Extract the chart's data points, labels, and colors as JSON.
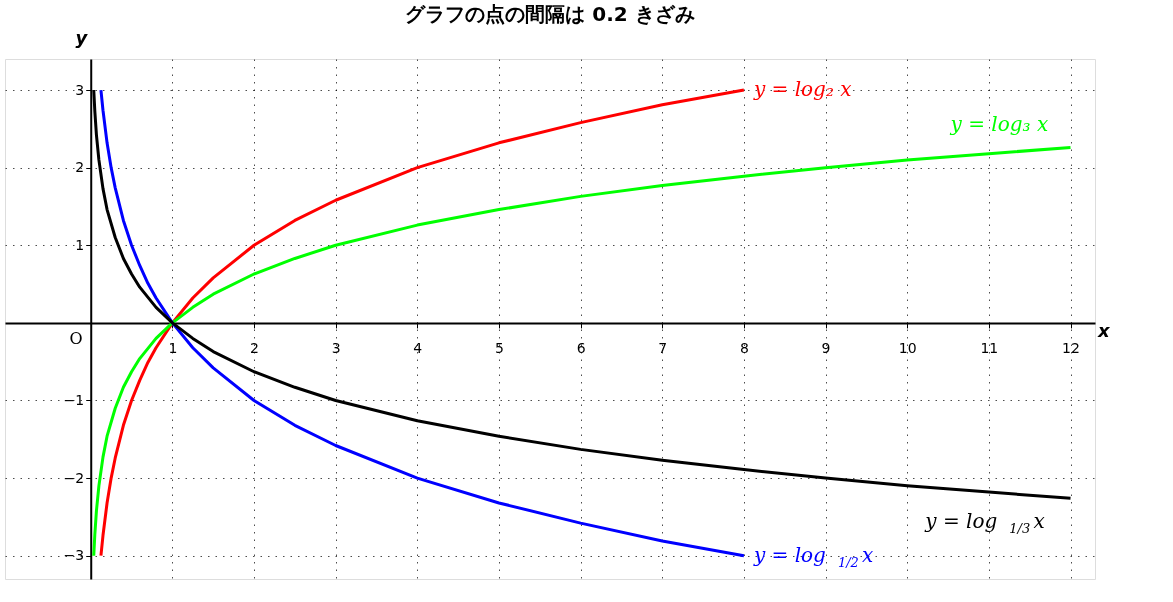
{
  "chart_data": {
    "type": "line",
    "title": "グラフの点の間隔は 0.2 きざみ",
    "xlabel": "x",
    "ylabel": "y",
    "xlim": [
      -1.05,
      12.3
    ],
    "ylim": [
      -3.3,
      3.4
    ],
    "xticks": [
      1,
      2,
      3,
      4,
      5,
      6,
      7,
      8,
      9,
      10,
      11,
      12
    ],
    "yticks": [
      -3,
      -2,
      -1,
      1,
      2,
      3
    ],
    "grid": true,
    "marker": "none",
    "line_style": "solid",
    "annotations": [
      "O"
    ],
    "series": [
      {
        "name": "y = log₂ x",
        "color": "#ff0000",
        "x": [
          0.125,
          0.15,
          0.2,
          0.25,
          0.3,
          0.4,
          0.5,
          0.6,
          0.7,
          0.8,
          1,
          1.25,
          1.5,
          2,
          2.5,
          3,
          4,
          5,
          6,
          7,
          8
        ],
        "values": [
          -3,
          -2.74,
          -2.32,
          -2,
          -1.74,
          -1.32,
          -1,
          -0.74,
          -0.51,
          -0.32,
          0,
          0.32,
          0.58,
          1,
          1.32,
          1.58,
          2,
          2.32,
          2.58,
          2.81,
          3
        ]
      },
      {
        "name": "y = log₃ x",
        "color": "#00ff00",
        "x": [
          0.037,
          0.05,
          0.07,
          0.1,
          0.15,
          0.2,
          0.3,
          0.4,
          0.5,
          0.6,
          0.8,
          1,
          1.25,
          1.5,
          2,
          2.5,
          3,
          4,
          5,
          6,
          7,
          8,
          9,
          10,
          11,
          12
        ],
        "values": [
          -3,
          -2.73,
          -2.42,
          -2.1,
          -1.73,
          -1.46,
          -1.1,
          -0.83,
          -0.63,
          -0.46,
          -0.2,
          0,
          0.2,
          0.37,
          0.63,
          0.83,
          1,
          1.26,
          1.46,
          1.63,
          1.77,
          1.89,
          2,
          2.1,
          2.18,
          2.26
        ]
      },
      {
        "name": "y = log$_{1/2}$ x",
        "color": "#0000ff",
        "x": [
          0.125,
          0.15,
          0.2,
          0.25,
          0.3,
          0.4,
          0.5,
          0.6,
          0.7,
          0.8,
          1,
          1.25,
          1.5,
          2,
          2.5,
          3,
          4,
          5,
          6,
          7,
          8
        ],
        "values": [
          3,
          2.74,
          2.32,
          2,
          1.74,
          1.32,
          1,
          0.74,
          0.51,
          0.32,
          0,
          -0.32,
          -0.58,
          -1,
          -1.32,
          -1.58,
          -2,
          -2.32,
          -2.58,
          -2.81,
          -3
        ]
      },
      {
        "name": "y = log$_{1/3}$ x",
        "color": "#000000",
        "x": [
          0.037,
          0.05,
          0.07,
          0.1,
          0.15,
          0.2,
          0.3,
          0.4,
          0.5,
          0.6,
          0.8,
          1,
          1.25,
          1.5,
          2,
          2.5,
          3,
          4,
          5,
          6,
          7,
          8,
          9,
          10,
          11,
          12
        ],
        "values": [
          3,
          2.73,
          2.42,
          2.1,
          1.73,
          1.46,
          1.1,
          0.83,
          0.63,
          0.46,
          0.2,
          0,
          -0.2,
          -0.37,
          -0.63,
          -0.83,
          -1,
          -1.26,
          -1.46,
          -1.63,
          -1.77,
          -1.89,
          -2,
          -2.1,
          -2.18,
          -2.26
        ]
      }
    ]
  }
}
